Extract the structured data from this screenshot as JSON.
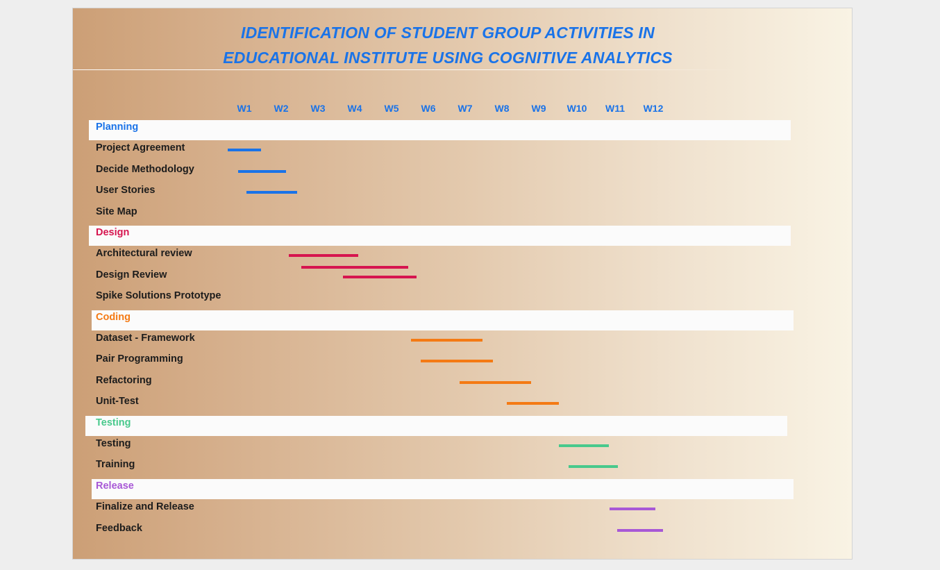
{
  "title": {
    "line1": "IDENTIFICATION OF STUDENT GROUP ACTIVITIES IN",
    "line2": "EDUCATIONAL INSTITUTE USING COGNITIVE ANALYTICS"
  },
  "colors": {
    "title": "#1a73e8",
    "planning": "#1a73e8",
    "design": "#d6154f",
    "coding": "#f47a14",
    "testing": "#48c98c",
    "release": "#a858d6",
    "task_text": "#1c1c1c"
  },
  "chart_data": {
    "type": "gantt",
    "weeks": [
      "W1",
      "W2",
      "W3",
      "W4",
      "W5",
      "W6",
      "W7",
      "W8",
      "W9",
      "W10",
      "W11",
      "W12"
    ],
    "units": "weeks",
    "groups": [
      {
        "name": "Planning",
        "color": "#1a73e8",
        "tasks": [
          {
            "name": "Project Agreement",
            "start": 0.55,
            "end": 1.45
          },
          {
            "name": "Decide Methodology",
            "start": 0.83,
            "end": 2.13
          },
          {
            "name": "User Stories",
            "start": 1.05,
            "end": 2.43
          },
          {
            "name": "Site Map",
            "start": null,
            "end": null
          }
        ]
      },
      {
        "name": "Design",
        "color": "#d6154f",
        "tasks": [
          {
            "name": "Architectural review",
            "start": 2.2,
            "end": 4.1,
            "extra": [
              {
                "start": 2.55,
                "end": 5.45
              }
            ]
          },
          {
            "name": "Design Review",
            "start": 3.68,
            "end": 5.68
          },
          {
            "name": "Spike Solutions Prototype",
            "start": null,
            "end": null
          }
        ]
      },
      {
        "name": "Coding",
        "color": "#f47a14",
        "tasks": [
          {
            "name": "Dataset - Framework",
            "start": 5.52,
            "end": 7.48
          },
          {
            "name": "Pair Programming",
            "start": 5.8,
            "end": 7.75
          },
          {
            "name": "Refactoring",
            "start": 6.85,
            "end": 8.8
          },
          {
            "name": "Unit-Test",
            "start": 8.13,
            "end": 9.55
          }
        ]
      },
      {
        "name": "Testing",
        "color": "#48c98c",
        "tasks": [
          {
            "name": "Testing",
            "start": 9.55,
            "end": 10.9
          },
          {
            "name": "Training",
            "start": 9.82,
            "end": 11.15
          }
        ]
      },
      {
        "name": "Release",
        "color": "#a858d6",
        "tasks": [
          {
            "name": "Finalize and Release",
            "start": 10.93,
            "end": 12.17
          },
          {
            "name": "Feedback",
            "start": 11.13,
            "end": 12.38
          }
        ]
      }
    ]
  }
}
